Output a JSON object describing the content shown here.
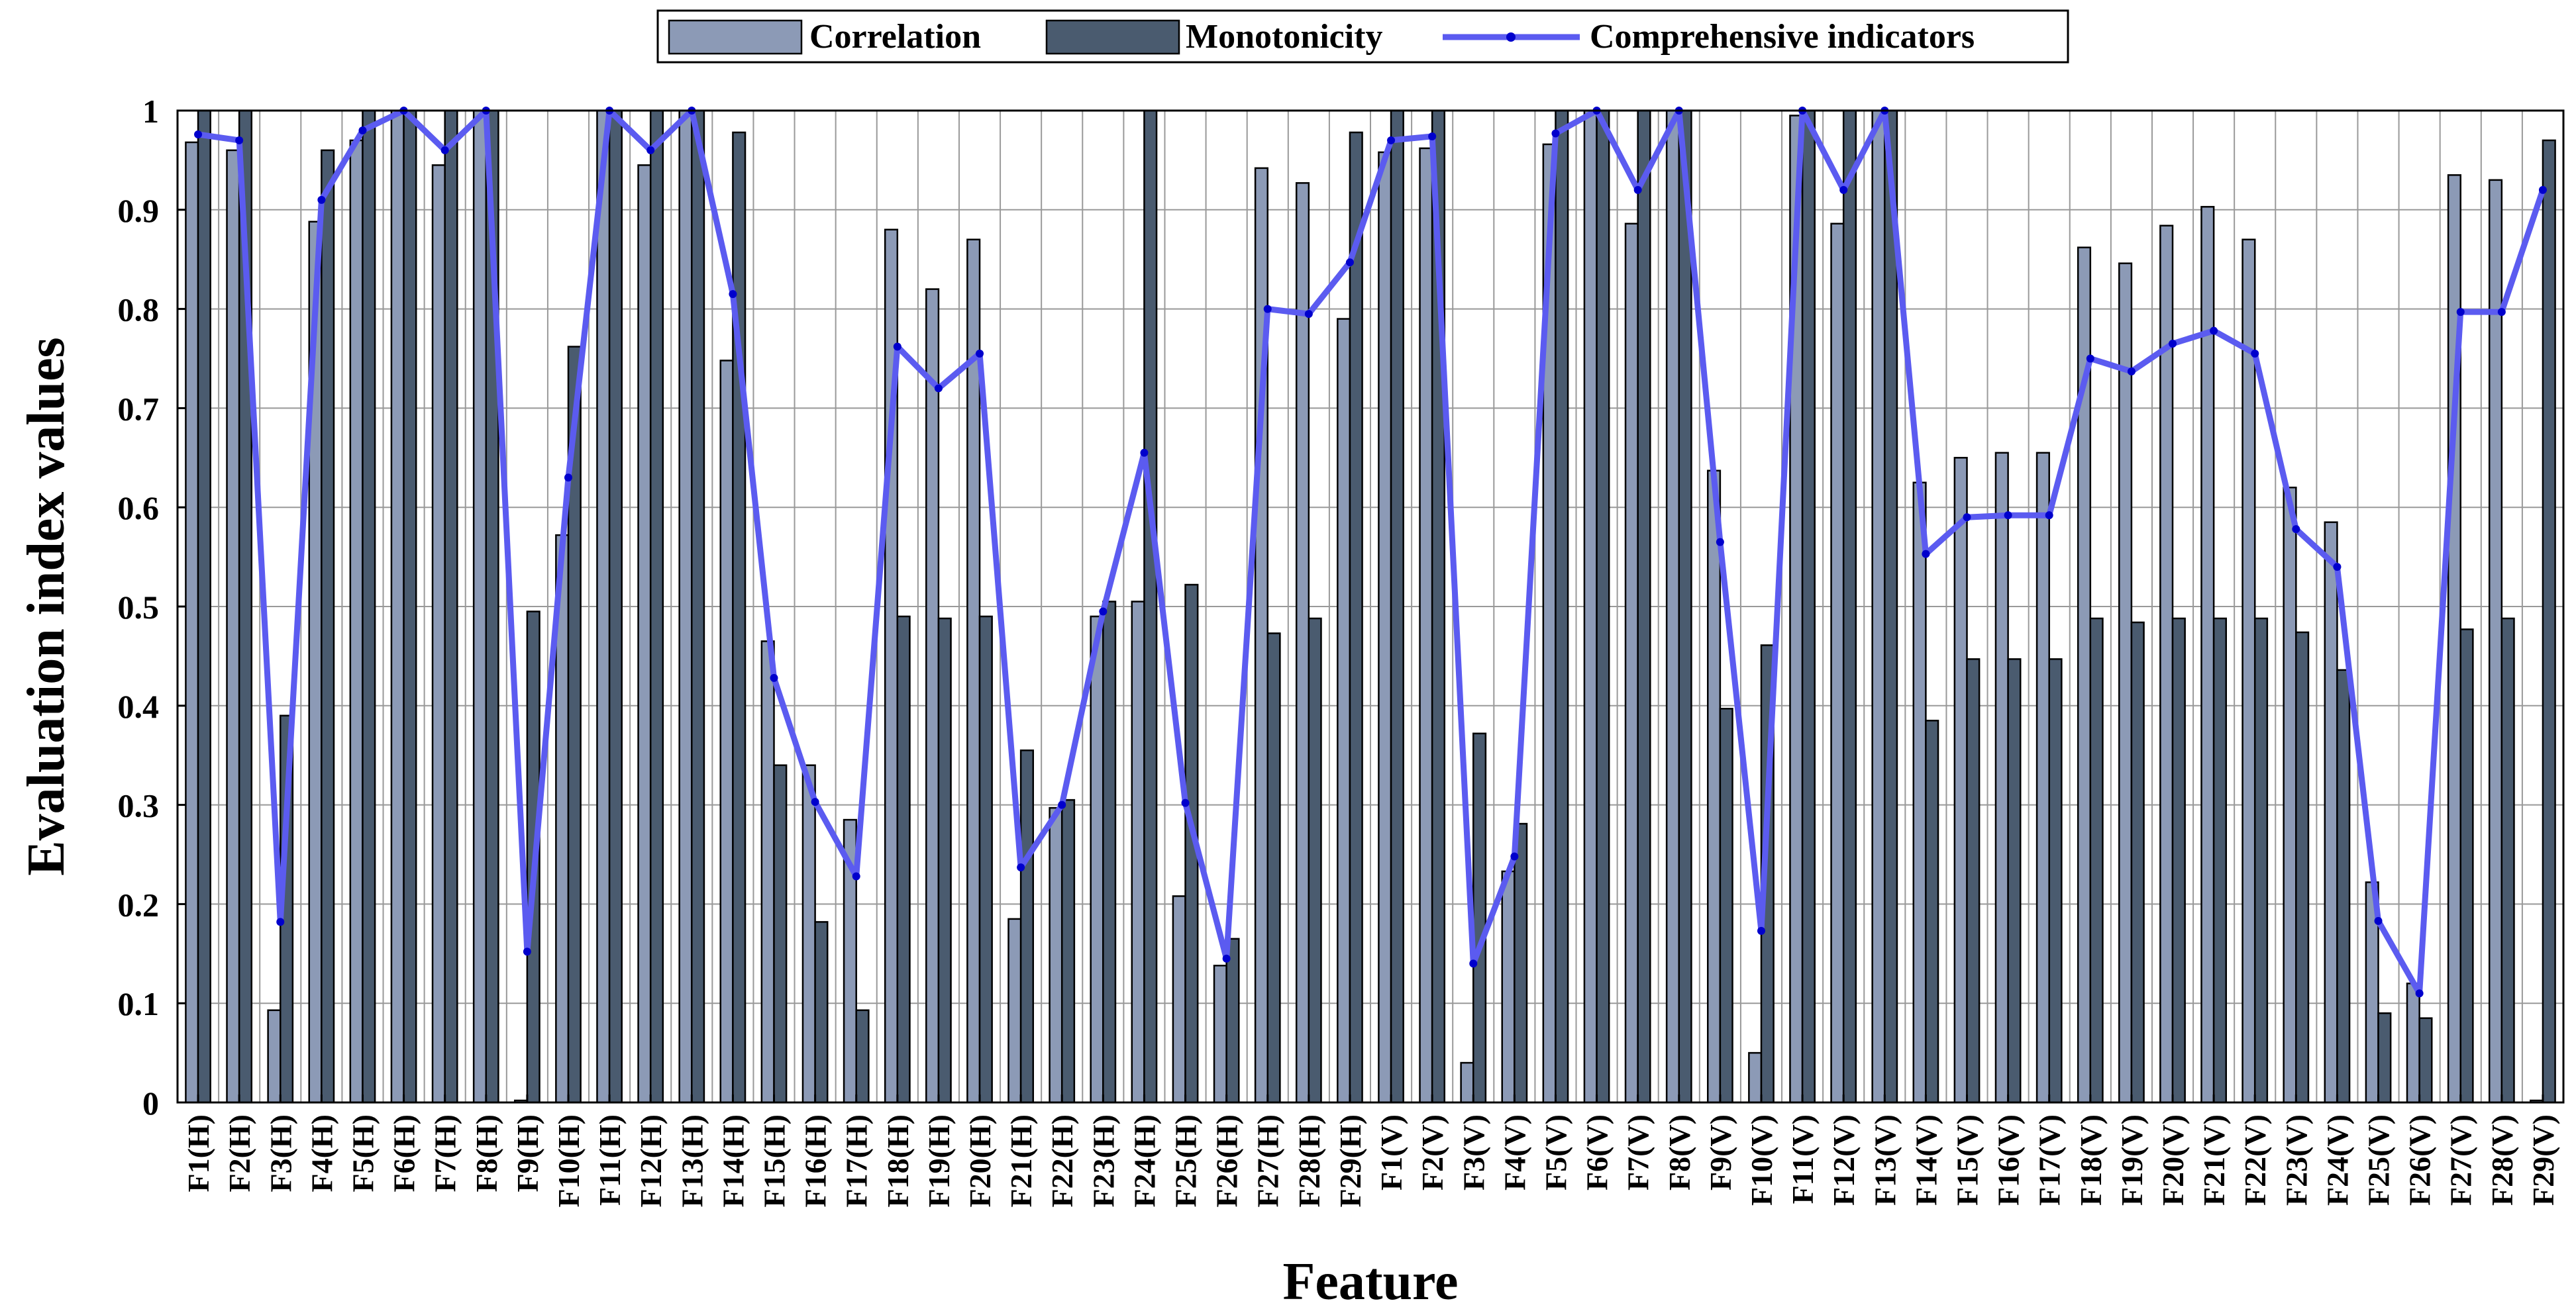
{
  "chart_data": {
    "type": "bar",
    "title": "",
    "xlabel": "Feature",
    "ylabel": "Evaluation index values",
    "ylim": [
      0,
      1
    ],
    "yticks": [
      "0",
      "0.1",
      "0.2",
      "0.3",
      "0.4",
      "0.5",
      "0.6",
      "0.7",
      "0.8",
      "0.9",
      "1"
    ],
    "grid": true,
    "legend_position": "top-center",
    "categories": [
      "F1(H)",
      "F2(H)",
      "F3(H)",
      "F4(H)",
      "F5(H)",
      "F6(H)",
      "F7(H)",
      "F8(H)",
      "F9(H)",
      "F10(H)",
      "F11(H)",
      "F12(H)",
      "F13(H)",
      "F14(H)",
      "F15(H)",
      "F16(H)",
      "F17(H)",
      "F18(H)",
      "F19(H)",
      "F20(H)",
      "F21(H)",
      "F22(H)",
      "F23(H)",
      "F24(H)",
      "F25(H)",
      "F26(H)",
      "F27(H)",
      "F28(H)",
      "F29(H)",
      "F1(V)",
      "F2(V)",
      "F3(V)",
      "F4(V)",
      "F5(V)",
      "F6(V)",
      "F7(V)",
      "F8(V)",
      "F9(V)",
      "F10(V)",
      "F11(V)",
      "F12(V)",
      "F13(V)",
      "F14(V)",
      "F15(V)",
      "F16(V)",
      "F17(V)",
      "F18(V)",
      "F19(V)",
      "F20(V)",
      "F21(V)",
      "F22(V)",
      "F23(V)",
      "F24(V)",
      "F25(V)",
      "F26(V)",
      "F27(V)",
      "F28(V)",
      "F29(V)"
    ],
    "series": [
      {
        "name": "Correlation",
        "kind": "bar",
        "color": "#8c9ab6",
        "values": [
          0.968,
          0.96,
          0.093,
          0.888,
          0.97,
          1.0,
          0.945,
          1.0,
          0.002,
          0.572,
          1.0,
          0.945,
          1.0,
          0.748,
          0.465,
          0.34,
          0.285,
          0.88,
          0.82,
          0.87,
          0.185,
          0.297,
          0.49,
          0.505,
          0.208,
          0.138,
          0.942,
          0.927,
          0.79,
          0.958,
          0.962,
          0.04,
          0.233,
          0.966,
          1.0,
          0.886,
          1.0,
          0.637,
          0.05,
          0.995,
          0.886,
          1.0,
          0.625,
          0.65,
          0.655,
          0.655,
          0.862,
          0.846,
          0.884,
          0.903,
          0.87,
          0.62,
          0.585,
          0.222,
          0.12,
          0.935,
          0.93,
          0.002
        ]
      },
      {
        "name": "Monotonicity",
        "kind": "bar",
        "color": "#4a5b6f",
        "values": [
          1.0,
          1.0,
          0.39,
          0.96,
          1.0,
          1.0,
          1.0,
          1.0,
          0.495,
          0.762,
          1.0,
          1.0,
          1.0,
          0.978,
          0.34,
          0.182,
          0.093,
          0.49,
          0.488,
          0.49,
          0.355,
          0.305,
          0.505,
          1.0,
          0.522,
          0.165,
          0.473,
          0.488,
          0.978,
          1.0,
          1.0,
          0.372,
          0.281,
          1.0,
          1.0,
          1.0,
          1.0,
          0.397,
          0.461,
          1.0,
          1.0,
          1.0,
          0.385,
          0.447,
          0.447,
          0.447,
          0.488,
          0.484,
          0.488,
          0.488,
          0.488,
          0.474,
          0.436,
          0.09,
          0.085,
          0.477,
          0.488,
          0.97
        ]
      },
      {
        "name": "Comprehensive indicators",
        "kind": "line",
        "color": "#5b5bf0",
        "marker_color": "#0000cc",
        "values": [
          0.976,
          0.97,
          0.182,
          0.91,
          0.98,
          1.0,
          0.96,
          1.0,
          0.152,
          0.63,
          1.0,
          0.96,
          1.0,
          0.815,
          0.428,
          0.303,
          0.228,
          0.762,
          0.72,
          0.755,
          0.237,
          0.3,
          0.495,
          0.655,
          0.302,
          0.145,
          0.8,
          0.795,
          0.847,
          0.97,
          0.974,
          0.14,
          0.248,
          0.977,
          1.0,
          0.92,
          1.0,
          0.565,
          0.173,
          1.0,
          0.92,
          1.0,
          0.553,
          0.59,
          0.592,
          0.592,
          0.75,
          0.737,
          0.765,
          0.778,
          0.755,
          0.578,
          0.54,
          0.183,
          0.11,
          0.797,
          0.797,
          0.92
        ]
      }
    ]
  }
}
